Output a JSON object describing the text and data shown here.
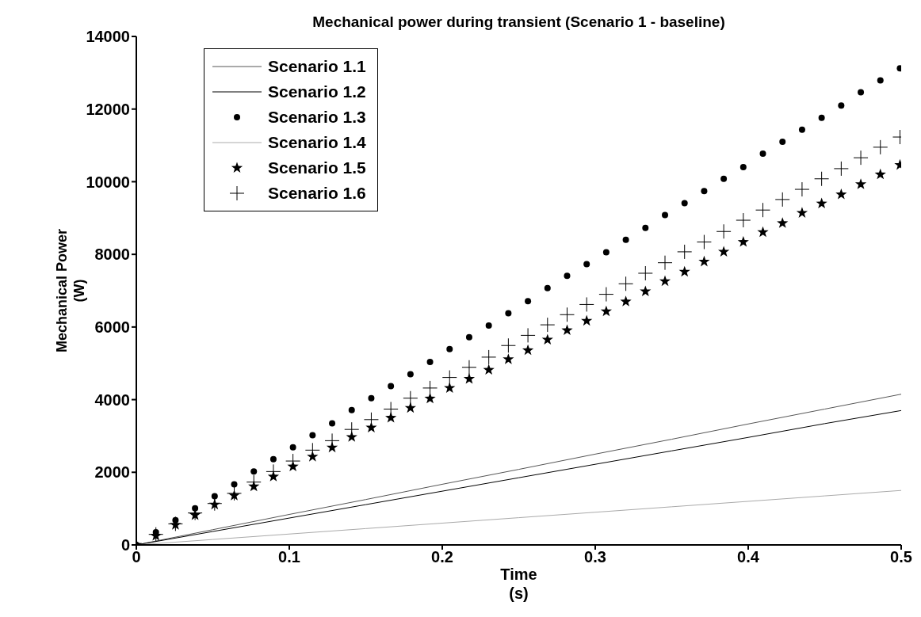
{
  "chart_data": {
    "type": "line",
    "title": "Mechanical power during transient (Scenario 1 - baseline)",
    "xlabel": "Time (s)",
    "ylabel": "Mechanical Power (W)",
    "xlim": [
      0,
      0.5
    ],
    "xticks": [
      0,
      0.1,
      0.2,
      0.3,
      0.4,
      0.5
    ],
    "ylim": [
      0,
      14000
    ],
    "yticks": [
      0,
      2000,
      4000,
      6000,
      8000,
      10000,
      12000,
      14000
    ],
    "grid": false,
    "legend": "top left",
    "line_style": "solid",
    "series": [
      {
        "name": "Scenario 1.1",
        "marker": "none",
        "color": "#555555",
        "x": [
          0,
          0.05,
          0.1,
          0.15,
          0.2,
          0.25,
          0.3,
          0.35,
          0.4,
          0.45,
          0.5
        ],
        "values": [
          0,
          420,
          840,
          1250,
          1670,
          2080,
          2500,
          2910,
          3330,
          3740,
          4150
        ]
      },
      {
        "name": "Scenario 1.2",
        "marker": "none",
        "color": "#000000",
        "x": [
          0,
          0.05,
          0.1,
          0.15,
          0.2,
          0.25,
          0.3,
          0.35,
          0.4,
          0.45,
          0.5
        ],
        "values": [
          0,
          370,
          740,
          1110,
          1480,
          1850,
          2220,
          2590,
          2960,
          3340,
          3700
        ]
      },
      {
        "name": "Scenario 1.3",
        "type": "scatter",
        "marker": "circle",
        "color": "#000000",
        "x": [
          0,
          0.0128,
          0.0256,
          0.0384,
          0.0512,
          0.064,
          0.0768,
          0.0896,
          0.1024,
          0.1152,
          0.128,
          0.1408,
          0.1536,
          0.1664,
          0.1792,
          0.192,
          0.2048,
          0.2176,
          0.2304,
          0.2432,
          0.256,
          0.2688,
          0.2816,
          0.2944,
          0.3072,
          0.32,
          0.3328,
          0.3456,
          0.3584,
          0.3712,
          0.384,
          0.3968,
          0.4096,
          0.4224,
          0.4352,
          0.448,
          0.4608,
          0.4736,
          0.4864,
          0.4992
        ],
        "values": [
          0,
          350,
          680,
          1010,
          1340,
          1670,
          2020,
          2360,
          2690,
          3020,
          3350,
          3710,
          4040,
          4370,
          4700,
          5040,
          5390,
          5720,
          6040,
          6380,
          6710,
          7070,
          7410,
          7730,
          8060,
          8400,
          8730,
          9080,
          9410,
          9740,
          10080,
          10400,
          10770,
          11100,
          11430,
          11760,
          12100,
          12460,
          12790,
          13120
        ]
      },
      {
        "name": "Scenario 1.4",
        "marker": "none",
        "color": "#aaaaaa",
        "x": [
          0,
          0.05,
          0.1,
          0.15,
          0.2,
          0.25,
          0.3,
          0.35,
          0.4,
          0.45,
          0.5
        ],
        "values": [
          0,
          150,
          300,
          450,
          600,
          750,
          900,
          1050,
          1200,
          1350,
          1500
        ]
      },
      {
        "name": "Scenario 1.5",
        "type": "scatter",
        "marker": "star",
        "color": "#000000",
        "x": [
          0,
          0.0128,
          0.0256,
          0.0384,
          0.0512,
          0.064,
          0.0768,
          0.0896,
          0.1024,
          0.1152,
          0.128,
          0.1408,
          0.1536,
          0.1664,
          0.1792,
          0.192,
          0.2048,
          0.2176,
          0.2304,
          0.2432,
          0.256,
          0.2688,
          0.2816,
          0.2944,
          0.3072,
          0.32,
          0.3328,
          0.3456,
          0.3584,
          0.3712,
          0.384,
          0.3968,
          0.4096,
          0.4224,
          0.4352,
          0.448,
          0.4608,
          0.4736,
          0.4864,
          0.4992
        ],
        "values": [
          0,
          250,
          550,
          820,
          1110,
          1360,
          1610,
          1880,
          2160,
          2430,
          2680,
          2970,
          3230,
          3500,
          3770,
          4030,
          4320,
          4570,
          4820,
          5110,
          5360,
          5650,
          5910,
          6170,
          6430,
          6700,
          6980,
          7260,
          7520,
          7800,
          8070,
          8340,
          8610,
          8860,
          9140,
          9400,
          9650,
          9930,
          10200,
          10460
        ]
      },
      {
        "name": "Scenario 1.6",
        "type": "scatter",
        "marker": "cross",
        "color": "#000000",
        "x": [
          0.0128,
          0.0256,
          0.0384,
          0.0512,
          0.064,
          0.0768,
          0.0896,
          0.1024,
          0.1152,
          0.128,
          0.1408,
          0.1536,
          0.1664,
          0.1792,
          0.192,
          0.2048,
          0.2176,
          0.2304,
          0.2432,
          0.256,
          0.2688,
          0.2816,
          0.2944,
          0.3072,
          0.32,
          0.3328,
          0.3456,
          0.3584,
          0.3712,
          0.384,
          0.3968,
          0.4096,
          0.4224,
          0.4352,
          0.448,
          0.4608,
          0.4736,
          0.4864,
          0.4992
        ],
        "values": [
          290,
          580,
          880,
          1140,
          1420,
          1730,
          2020,
          2310,
          2610,
          2870,
          3180,
          3450,
          3740,
          4040,
          4320,
          4610,
          4890,
          5170,
          5490,
          5770,
          6060,
          6340,
          6620,
          6900,
          7190,
          7480,
          7770,
          8070,
          8340,
          8630,
          8940,
          9220,
          9510,
          9790,
          10080,
          10360,
          10660,
          10950,
          11230
        ]
      }
    ]
  }
}
